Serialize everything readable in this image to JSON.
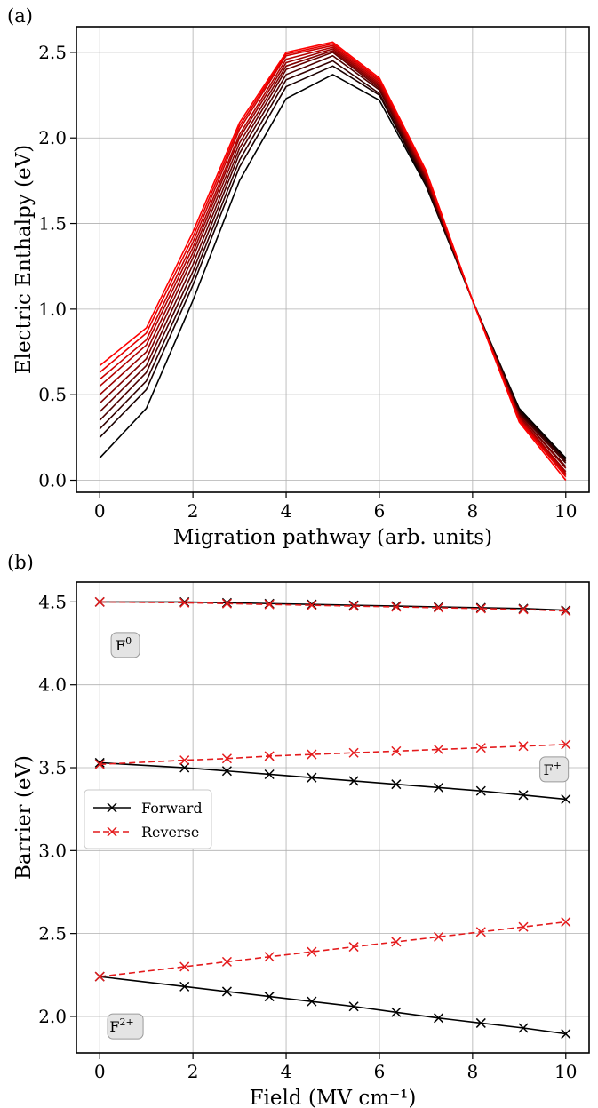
{
  "chart_data": [
    {
      "panel_label": "(a)",
      "type": "line",
      "title": "",
      "xlabel": "Migration pathway (arb. units)",
      "ylabel": "Electric Enthalpy (eV)",
      "xlim": [
        -0.5,
        10.5
      ],
      "ylim": [
        -0.07,
        2.65
      ],
      "xticks": [
        0,
        2,
        4,
        6,
        8,
        10
      ],
      "yticks": [
        0.0,
        0.5,
        1.0,
        1.5,
        2.0,
        2.5
      ],
      "xtick_labels": [
        "0",
        "2",
        "4",
        "6",
        "8",
        "10"
      ],
      "ytick_labels": [
        "0.0",
        "0.5",
        "1.0",
        "1.5",
        "2.0",
        "2.5"
      ],
      "grid": true,
      "colormap": "black to red",
      "color_start": "#000000",
      "color_end": "#ff0000",
      "x": [
        0,
        1,
        2,
        3,
        4,
        5,
        6,
        7,
        8,
        9,
        10
      ],
      "series": [
        {
          "values": [
            0.13,
            0.42,
            1.05,
            1.75,
            2.23,
            2.37,
            2.22,
            1.72,
            1.05,
            0.42,
            0.13
          ]
        },
        {
          "values": [
            0.25,
            0.53,
            1.14,
            1.83,
            2.3,
            2.42,
            2.25,
            1.73,
            1.05,
            0.41,
            0.12
          ]
        },
        {
          "values": [
            0.3,
            0.58,
            1.18,
            1.87,
            2.34,
            2.45,
            2.26,
            1.74,
            1.05,
            0.4,
            0.11
          ]
        },
        {
          "values": [
            0.35,
            0.63,
            1.22,
            1.91,
            2.37,
            2.48,
            2.28,
            1.75,
            1.05,
            0.39,
            0.1
          ]
        },
        {
          "values": [
            0.4,
            0.67,
            1.26,
            1.94,
            2.4,
            2.5,
            2.29,
            1.76,
            1.05,
            0.38,
            0.08
          ]
        },
        {
          "values": [
            0.45,
            0.71,
            1.3,
            1.97,
            2.42,
            2.51,
            2.3,
            1.77,
            1.05,
            0.38,
            0.07
          ]
        },
        {
          "values": [
            0.5,
            0.75,
            1.33,
            2.0,
            2.44,
            2.52,
            2.31,
            1.78,
            1.05,
            0.37,
            0.05
          ]
        },
        {
          "values": [
            0.55,
            0.79,
            1.36,
            2.02,
            2.46,
            2.53,
            2.32,
            1.78,
            1.05,
            0.36,
            0.04
          ]
        },
        {
          "values": [
            0.59,
            0.82,
            1.39,
            2.05,
            2.48,
            2.54,
            2.33,
            1.79,
            1.05,
            0.36,
            0.03
          ]
        },
        {
          "values": [
            0.63,
            0.86,
            1.42,
            2.07,
            2.49,
            2.55,
            2.34,
            1.8,
            1.05,
            0.35,
            0.02
          ]
        },
        {
          "values": [
            0.67,
            0.89,
            1.45,
            2.09,
            2.5,
            2.56,
            2.35,
            1.81,
            1.05,
            0.34,
            0.0
          ]
        }
      ]
    },
    {
      "panel_label": "(b)",
      "type": "line",
      "title": "",
      "xlabel": "Field (MV cm⁻¹)",
      "ylabel": "Barrier (eV)",
      "xlim": [
        -0.5,
        10.5
      ],
      "ylim": [
        1.78,
        4.62
      ],
      "xticks": [
        0,
        2,
        4,
        6,
        8,
        10
      ],
      "yticks": [
        2.0,
        2.5,
        3.0,
        3.5,
        4.0,
        4.5
      ],
      "xtick_labels": [
        "0",
        "2",
        "4",
        "6",
        "8",
        "10"
      ],
      "ytick_labels": [
        "2.0",
        "2.5",
        "3.0",
        "3.5",
        "4.0",
        "4.5"
      ],
      "grid": true,
      "legend_position": "center-left",
      "x": [
        0,
        1.82,
        2.73,
        3.64,
        4.55,
        5.45,
        6.36,
        7.27,
        8.18,
        9.09,
        10
      ],
      "legend": [
        {
          "label": "Forward",
          "color": "#000000",
          "style": "solid"
        },
        {
          "label": "Reverse",
          "color": "#e41a1c",
          "style": "dashed"
        }
      ],
      "series": [
        {
          "group": "F0",
          "direction": "Forward",
          "color": "#000000",
          "values": [
            4.5,
            4.5,
            4.495,
            4.49,
            4.485,
            4.48,
            4.475,
            4.47,
            4.465,
            4.46,
            4.45
          ]
        },
        {
          "group": "F0",
          "direction": "Reverse",
          "color": "#e41a1c",
          "values": [
            4.5,
            4.495,
            4.49,
            4.485,
            4.48,
            4.475,
            4.47,
            4.465,
            4.46,
            4.455,
            4.445
          ]
        },
        {
          "group": "F+",
          "direction": "Forward",
          "color": "#000000",
          "values": [
            3.53,
            3.5,
            3.48,
            3.46,
            3.44,
            3.42,
            3.4,
            3.38,
            3.36,
            3.335,
            3.31
          ]
        },
        {
          "group": "F+",
          "direction": "Reverse",
          "color": "#e41a1c",
          "values": [
            3.52,
            3.545,
            3.555,
            3.57,
            3.58,
            3.59,
            3.6,
            3.61,
            3.62,
            3.63,
            3.64
          ]
        },
        {
          "group": "F2+",
          "direction": "Forward",
          "color": "#000000",
          "values": [
            2.24,
            2.18,
            2.15,
            2.12,
            2.09,
            2.06,
            2.025,
            1.99,
            1.96,
            1.93,
            1.895
          ]
        },
        {
          "group": "F2+",
          "direction": "Reverse",
          "color": "#e41a1c",
          "values": [
            2.24,
            2.3,
            2.33,
            2.36,
            2.39,
            2.42,
            2.45,
            2.48,
            2.51,
            2.54,
            2.57
          ]
        }
      ],
      "annotations": [
        {
          "base": "F",
          "sup": "0",
          "x": 0.55,
          "y": 4.24
        },
        {
          "base": "F",
          "sup": "+",
          "x": 9.75,
          "y": 3.49
        },
        {
          "base": "F",
          "sup": "2+",
          "x": 0.55,
          "y": 1.94
        }
      ]
    }
  ]
}
